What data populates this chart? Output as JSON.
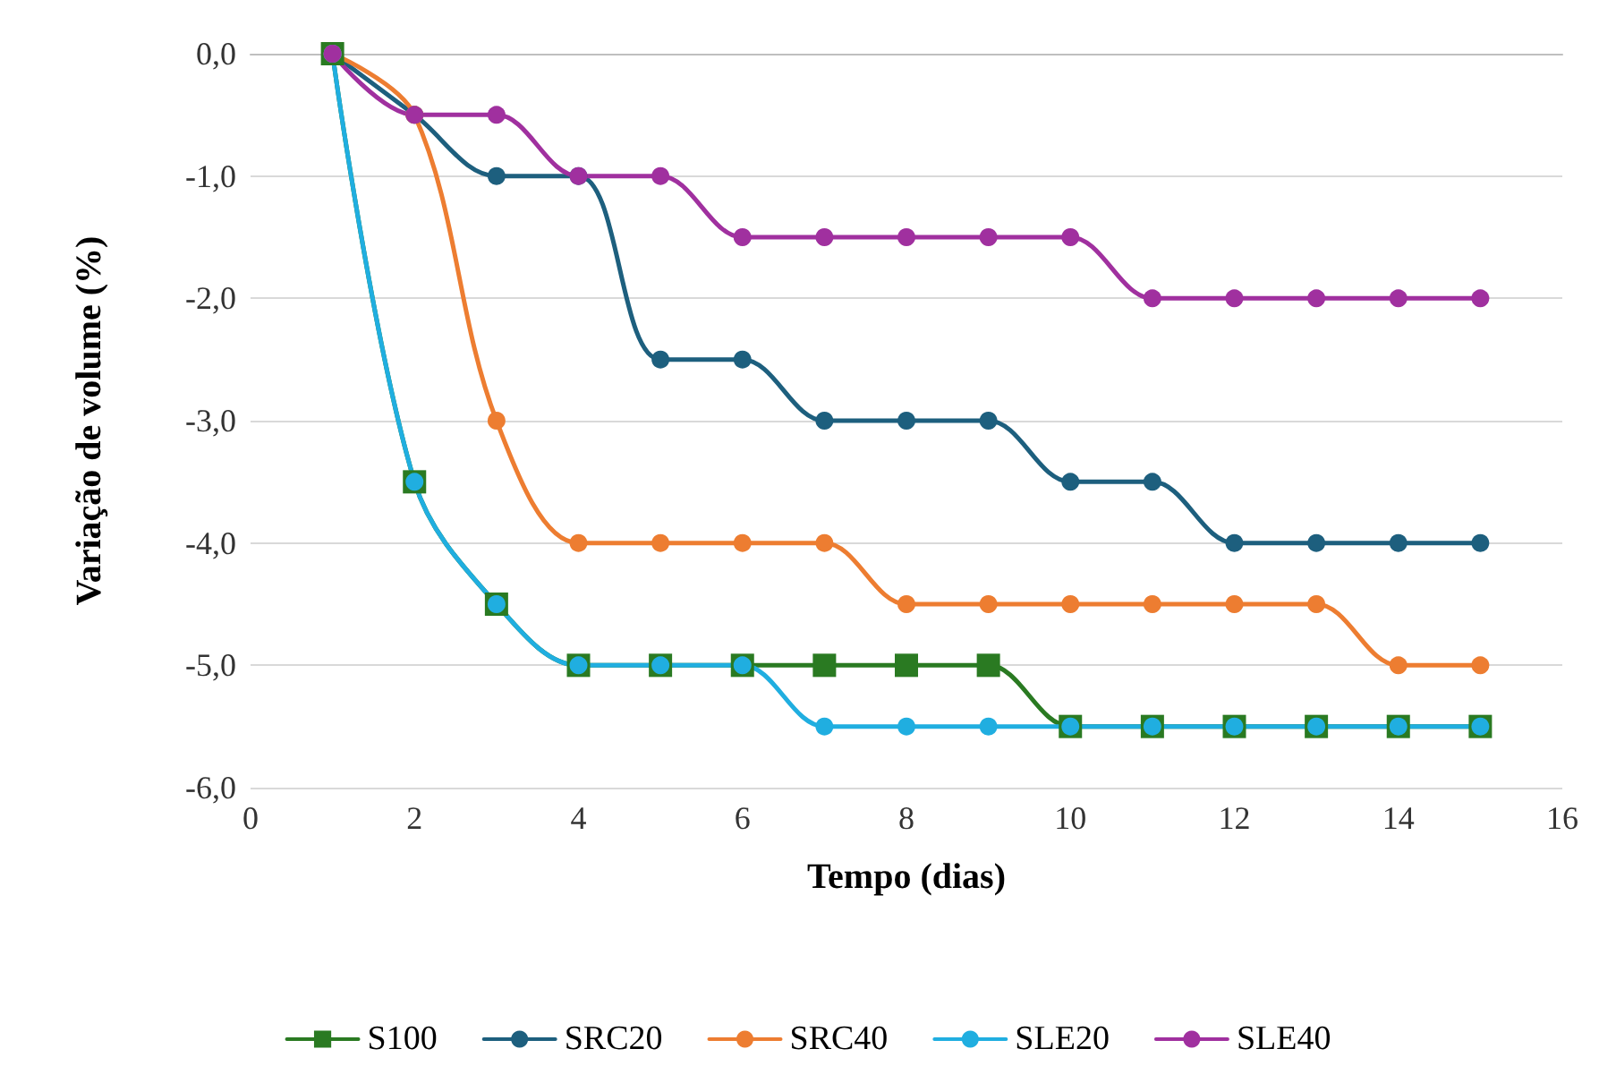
{
  "chart_data": {
    "type": "line",
    "xlabel": "Tempo (dias)",
    "ylabel": "Variação de volume (%)",
    "x": [
      1,
      2,
      3,
      4,
      5,
      6,
      7,
      8,
      9,
      10,
      11,
      12,
      13,
      14,
      15
    ],
    "xlim": [
      0,
      16
    ],
    "xticks": [
      0,
      2,
      4,
      6,
      8,
      10,
      12,
      14,
      16
    ],
    "ylim": [
      -6,
      0
    ],
    "yticks": [
      {
        "value": -6,
        "label": "-6,0"
      },
      {
        "value": -5,
        "label": "-5,0"
      },
      {
        "value": -4,
        "label": "-4,0"
      },
      {
        "value": -3,
        "label": "-3,0"
      },
      {
        "value": -2,
        "label": "-2,0"
      },
      {
        "value": -1,
        "label": "-1,0"
      },
      {
        "value": 0,
        "label": "0,0"
      }
    ],
    "grid": "y",
    "legend": "bottom",
    "line_style": "solid",
    "series": [
      {
        "name": "S100",
        "color": "#2a7a22",
        "marker": "square",
        "values": [
          0,
          -3.5,
          -4.5,
          -5,
          -5,
          -5,
          -5,
          -5,
          -5,
          -5.5,
          -5.5,
          -5.5,
          -5.5,
          -5.5,
          -5.5
        ]
      },
      {
        "name": "SRC20",
        "color": "#1d5f7e",
        "marker": "circle",
        "values": [
          0,
          -0.5,
          -1,
          -1,
          -2.5,
          -2.5,
          -3,
          -3,
          -3,
          -3.5,
          -3.5,
          -4,
          -4,
          -4,
          -4
        ]
      },
      {
        "name": "SRC40",
        "color": "#ed7d31",
        "marker": "circle",
        "values": [
          0,
          -0.5,
          -3,
          -4,
          -4,
          -4,
          -4,
          -4.5,
          -4.5,
          -4.5,
          -4.5,
          -4.5,
          -4.5,
          -5,
          -5
        ]
      },
      {
        "name": "SLE20",
        "color": "#20aee0",
        "marker": "circle",
        "values": [
          0,
          -3.5,
          -4.5,
          -5,
          -5,
          -5,
          -5.5,
          -5.5,
          -5.5,
          -5.5,
          -5.5,
          -5.5,
          -5.5,
          -5.5,
          -5.5
        ]
      },
      {
        "name": "SLE40",
        "color": "#a0309f",
        "marker": "circle",
        "values": [
          0,
          -0.5,
          -0.5,
          -1,
          -1,
          -1.5,
          -1.5,
          -1.5,
          -1.5,
          -1.5,
          -2,
          -2,
          -2,
          -2,
          -2
        ]
      }
    ]
  }
}
